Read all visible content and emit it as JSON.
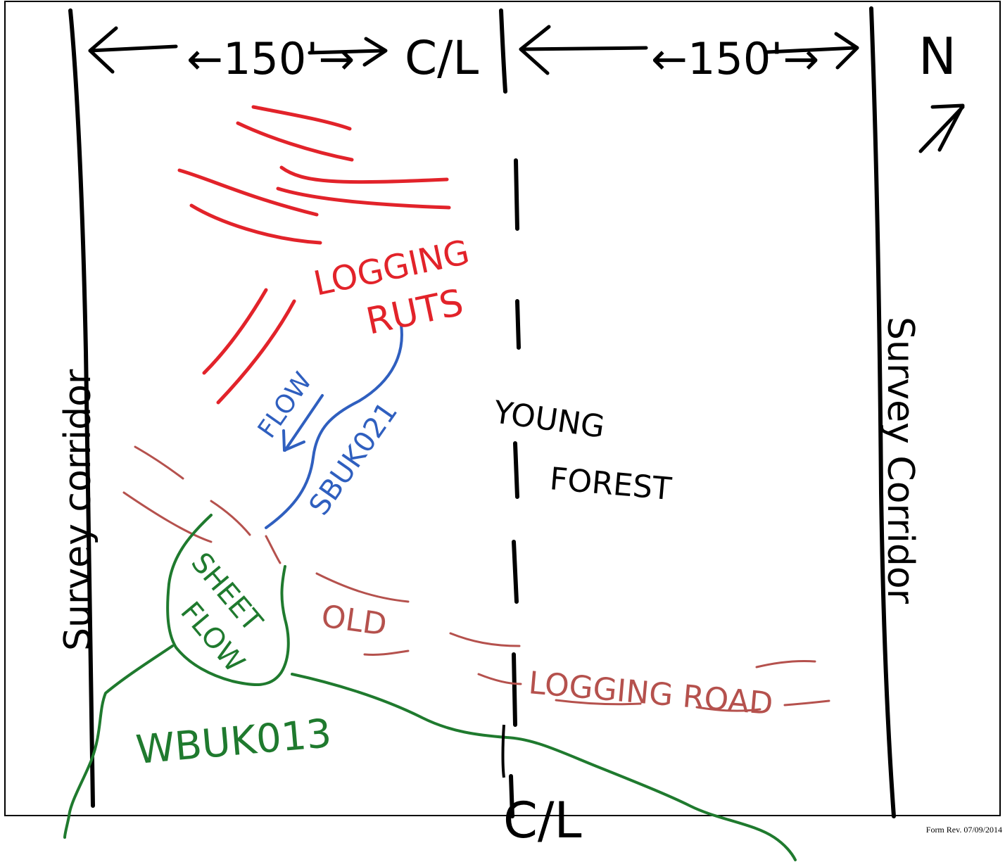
{
  "colors": {
    "ink": "#000000",
    "ruts": "#e2232a",
    "stream": "#2f5fbf",
    "wetland": "#1f7a2e",
    "road": "#b5514d"
  },
  "labels": {
    "top_left_dimension": "←150'→",
    "top_right_dimension": "←150'→",
    "centerline_top": "C/L",
    "centerline_bottom": "C/L",
    "north_label": "N",
    "north_arrow_icon": "north-arrow-icon",
    "corridor_left": "Survey corridor",
    "corridor_right": "Survey Corridor",
    "logging_ruts_1": "LOGGING",
    "logging_ruts_2": "RUTS",
    "flow": "FLOW",
    "stream_id": "SBUK021",
    "young_forest_1": "YOUNG",
    "young_forest_2": "FOREST",
    "sheet_flow_1": "SHEET",
    "sheet_flow_2": "FLOW",
    "old": "OLD",
    "logging_road": "LOGGING ROAD",
    "wetland_id": "WBUK013"
  },
  "footer": "Form Rev. 07/09/2014"
}
